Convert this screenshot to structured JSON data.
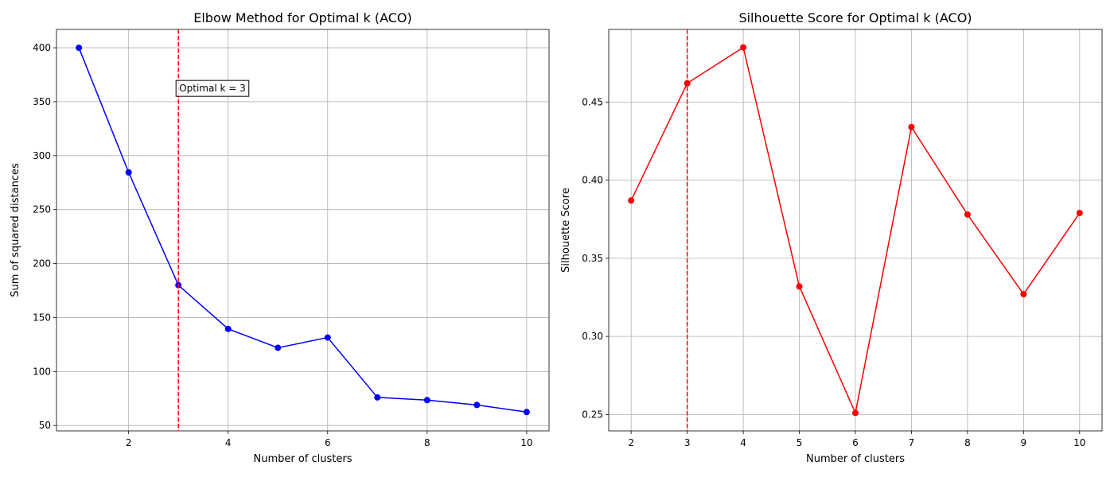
{
  "chart_data": [
    {
      "type": "line",
      "title": "Elbow Method for Optimal k (ACO)",
      "xlabel": "Number of clusters",
      "ylabel": "Sum of squared distances",
      "xlim": [
        0.55,
        10.45
      ],
      "ylim": [
        45,
        417
      ],
      "xticks": [
        2,
        4,
        6,
        8,
        10
      ],
      "yticks": [
        50,
        100,
        150,
        200,
        250,
        300,
        350,
        400
      ],
      "grid": true,
      "series": [
        {
          "color": "#0000ff",
          "marker": "circle",
          "x": [
            1,
            2,
            3,
            4,
            5,
            6,
            7,
            8,
            9,
            10
          ],
          "values": [
            400,
            284.5,
            180,
            139.5,
            122,
            131.5,
            76,
            73.5,
            69,
            62.5
          ]
        }
      ],
      "vline": {
        "x": 3,
        "color": "#ff0000",
        "style": "dashed"
      },
      "annotation": {
        "text": "Optimal k = 3",
        "x": 3,
        "y": 362
      }
    },
    {
      "type": "line",
      "title": "Silhouette Score for Optimal k (ACO)",
      "xlabel": "Number of clusters",
      "ylabel": "Silhouette Score",
      "xlim": [
        1.6,
        10.4
      ],
      "ylim": [
        0.2395,
        0.4965
      ],
      "xticks": [
        2,
        3,
        4,
        5,
        6,
        7,
        8,
        9,
        10
      ],
      "yticks": [
        0.25,
        0.3,
        0.35,
        0.4,
        0.45
      ],
      "ytick_format": 2,
      "grid": true,
      "series": [
        {
          "color": "#ff0000",
          "marker": "circle",
          "x": [
            2,
            3,
            4,
            5,
            6,
            7,
            8,
            9,
            10
          ],
          "values": [
            0.387,
            0.462,
            0.485,
            0.332,
            0.251,
            0.434,
            0.378,
            0.327,
            0.379
          ]
        }
      ],
      "vline": {
        "x": 3,
        "color": "#ff0000",
        "style": "dashed"
      }
    }
  ]
}
